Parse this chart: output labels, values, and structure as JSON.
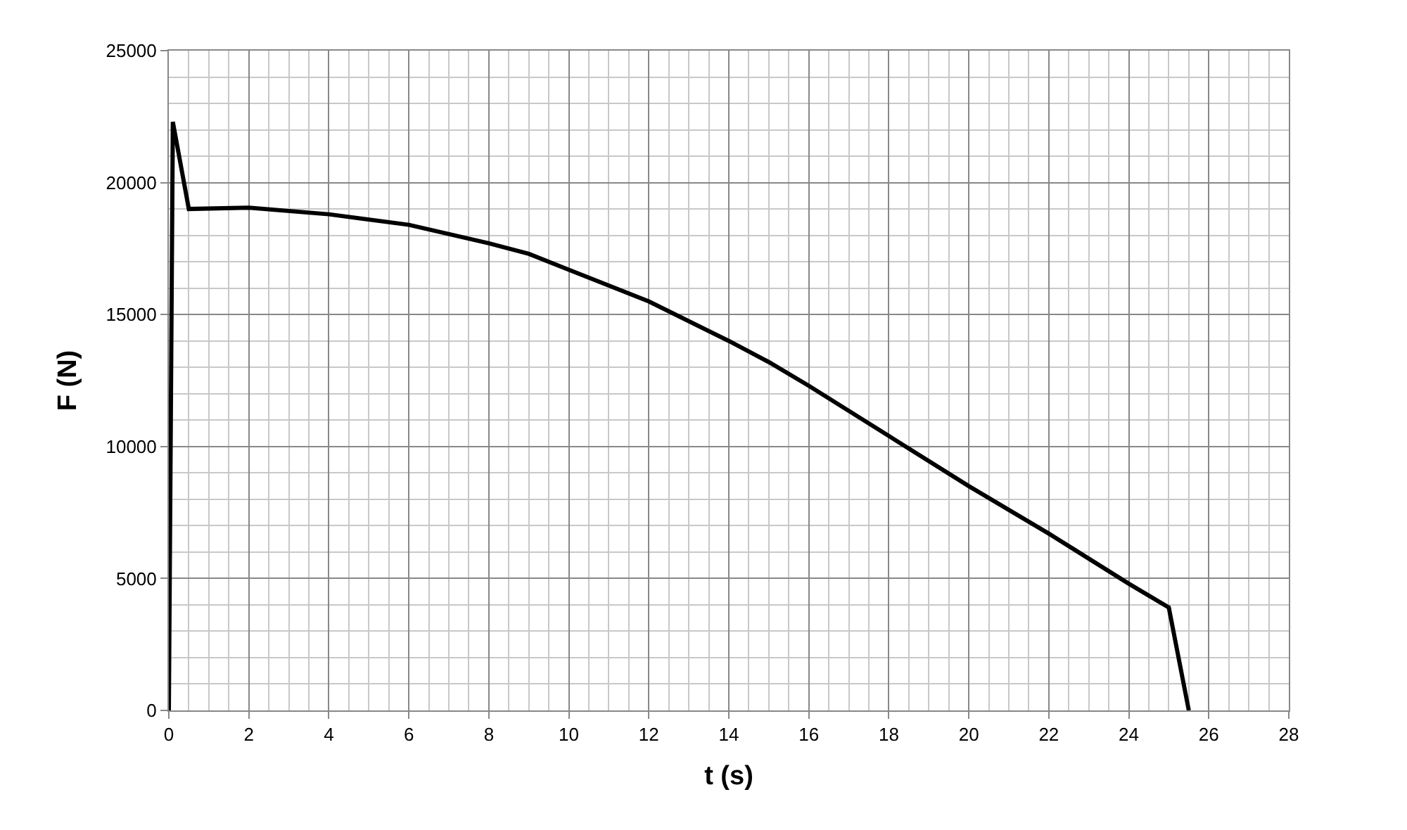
{
  "chart_data": {
    "type": "line",
    "xlabel": "t (s)",
    "ylabel": "F (N)",
    "series": [
      {
        "color": "#000000",
        "x": [
          0,
          0.1,
          0.5,
          2,
          4,
          6,
          8,
          9,
          10,
          12,
          14,
          15,
          16,
          18,
          20,
          22,
          24,
          25,
          25.5
        ],
        "values": [
          0,
          22300,
          19000,
          19050,
          18800,
          18400,
          17700,
          17300,
          16700,
          15500,
          14000,
          13200,
          12300,
          10400,
          8500,
          6700,
          4800,
          3900,
          0
        ]
      }
    ],
    "xlim": [
      0,
      28
    ],
    "xticks": [
      0,
      2,
      4,
      6,
      8,
      10,
      12,
      14,
      16,
      18,
      20,
      22,
      24,
      26,
      28
    ],
    "ylim": [
      0,
      25000
    ],
    "yticks": [
      0,
      5000,
      10000,
      15000,
      20000,
      25000
    ],
    "grid": true,
    "marker": "none",
    "line_style": "solid",
    "legend": false
  }
}
